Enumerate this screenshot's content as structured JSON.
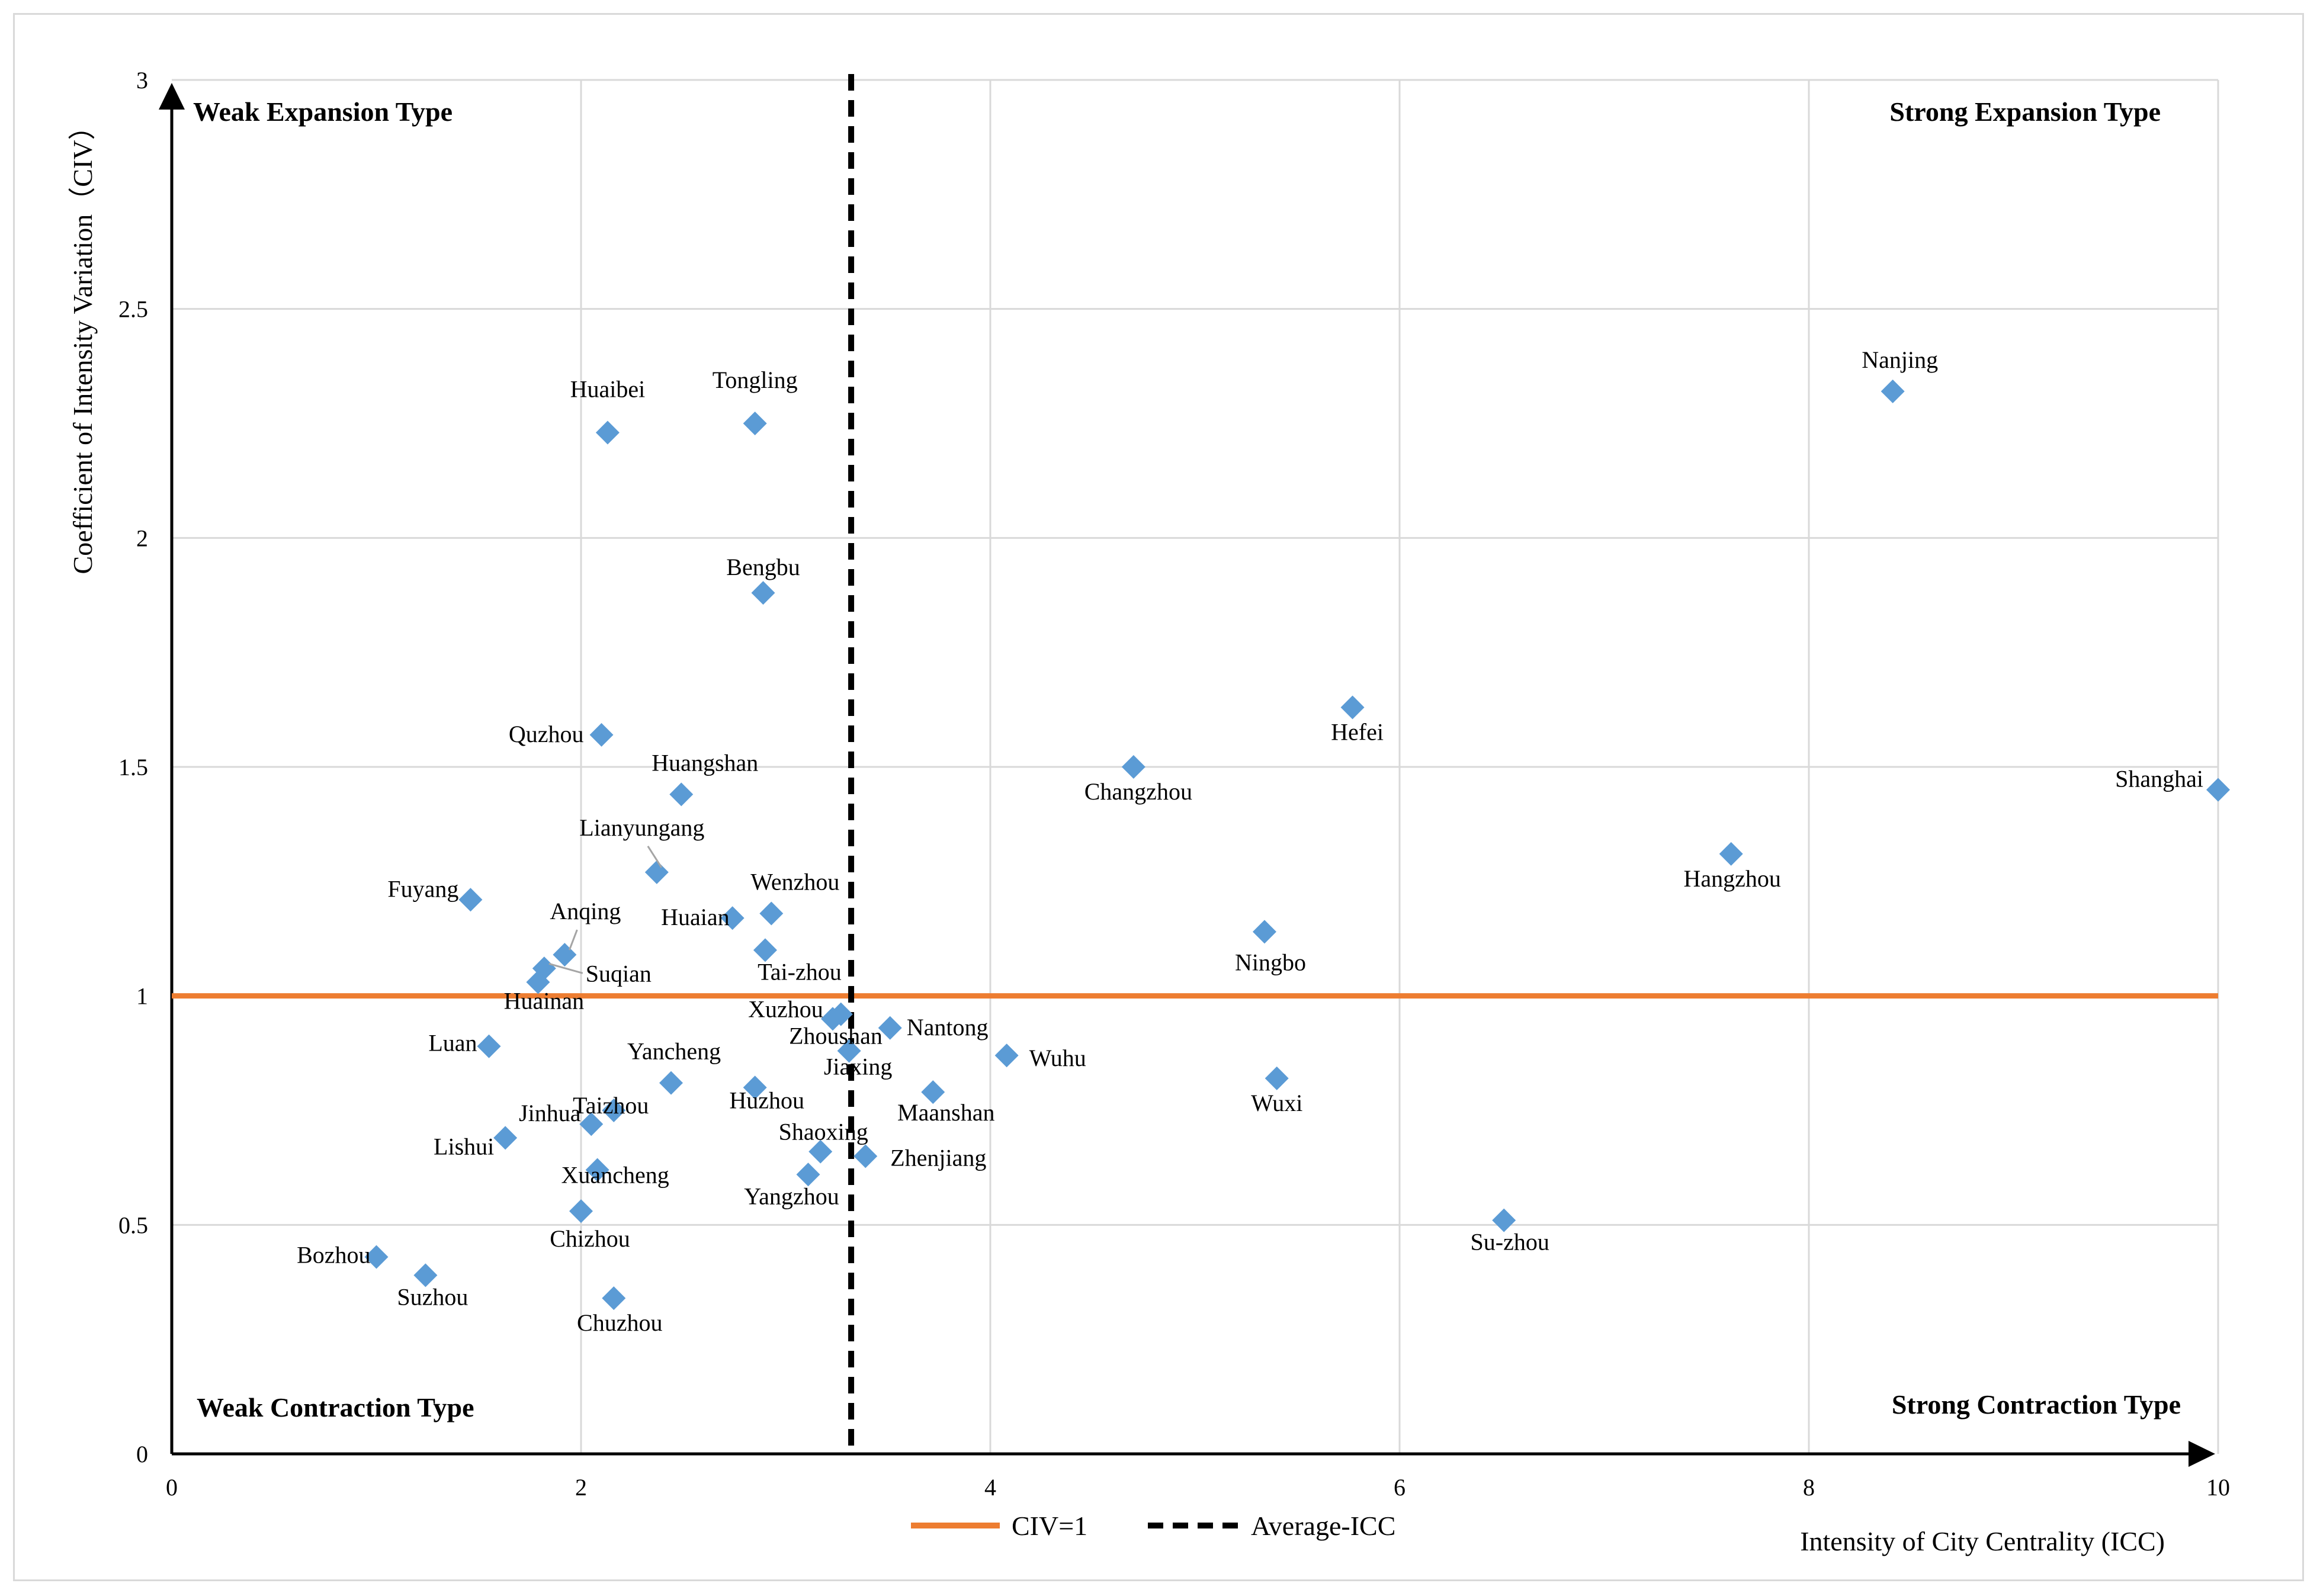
{
  "chart_data": {
    "type": "scatter",
    "xlabel": "Intensity of City Centrality (ICC)",
    "ylabel": "Coefficient of Intensity Variation（CIV）",
    "xlim": [
      0,
      10
    ],
    "ylim": [
      0,
      3
    ],
    "xticks": [
      "0",
      "2",
      "4",
      "6",
      "8",
      "10"
    ],
    "yticks": [
      "0",
      "0.5",
      "1",
      "1.5",
      "2",
      "2.5",
      "3"
    ],
    "grid": true,
    "marker_color": "#5b9bd5",
    "quadrants": {
      "top_left": "Weak Expansion Type",
      "top_right": "Strong Expansion Type",
      "bottom_left": "Weak Contraction Type",
      "bottom_right": "Strong Contraction Type"
    },
    "reference_lines": [
      {
        "name": "CIV=1",
        "orientation": "horizontal",
        "value": 1,
        "color": "#ed7d31",
        "style": "solid"
      },
      {
        "name": "Average-ICC",
        "orientation": "vertical",
        "value": 3.32,
        "color": "#000000",
        "style": "dashed"
      }
    ],
    "legend": [
      "CIV=1",
      "Average-ICC"
    ],
    "points": [
      {
        "label": "Nanjing",
        "x": 8.41,
        "y": 2.32
      },
      {
        "label": "Huaibei",
        "x": 2.13,
        "y": 2.23
      },
      {
        "label": "Tongling",
        "x": 2.85,
        "y": 2.25
      },
      {
        "label": "Bengbu",
        "x": 2.89,
        "y": 1.88
      },
      {
        "label": "Hefei",
        "x": 5.77,
        "y": 1.63
      },
      {
        "label": "Quzhou",
        "x": 2.1,
        "y": 1.57
      },
      {
        "label": "Huangshan",
        "x": 2.49,
        "y": 1.44
      },
      {
        "label": "Changzhou",
        "x": 4.7,
        "y": 1.5
      },
      {
        "label": "Shanghai",
        "x": 10.0,
        "y": 1.45
      },
      {
        "label": "Lianyungang",
        "x": 2.37,
        "y": 1.27
      },
      {
        "label": "Hangzhou",
        "x": 7.62,
        "y": 1.31
      },
      {
        "label": "Fuyang",
        "x": 1.46,
        "y": 1.21
      },
      {
        "label": "Wenzhou",
        "x": 2.93,
        "y": 1.18
      },
      {
        "label": "Huaian",
        "x": 2.74,
        "y": 1.17
      },
      {
        "label": "Anqing",
        "x": 1.92,
        "y": 1.09
      },
      {
        "label": "Ningbo",
        "x": 5.34,
        "y": 1.14
      },
      {
        "label": "Tai-zhou",
        "x": 2.9,
        "y": 1.1
      },
      {
        "label": "Suqian",
        "x": 1.82,
        "y": 1.06
      },
      {
        "label": "Huainan",
        "x": 1.79,
        "y": 1.03
      },
      {
        "label": "Xuzhou",
        "x": 3.27,
        "y": 0.96
      },
      {
        "label": "Zhoushan",
        "x": 3.23,
        "y": 0.95
      },
      {
        "label": "Nantong",
        "x": 3.51,
        "y": 0.93
      },
      {
        "label": "Luan",
        "x": 1.55,
        "y": 0.89
      },
      {
        "label": "Jiaxing",
        "x": 3.31,
        "y": 0.88
      },
      {
        "label": "Wuhu",
        "x": 4.08,
        "y": 0.87
      },
      {
        "label": "Yancheng",
        "x": 2.44,
        "y": 0.81
      },
      {
        "label": "Wuxi",
        "x": 5.4,
        "y": 0.82
      },
      {
        "label": "Huzhou",
        "x": 2.85,
        "y": 0.8
      },
      {
        "label": "Maanshan",
        "x": 3.72,
        "y": 0.79
      },
      {
        "label": "Taizhou",
        "x": 2.16,
        "y": 0.75
      },
      {
        "label": "Jinhua",
        "x": 2.05,
        "y": 0.72
      },
      {
        "label": "Lishui",
        "x": 1.63,
        "y": 0.69
      },
      {
        "label": "Shaoxing",
        "x": 3.17,
        "y": 0.66
      },
      {
        "label": "Zhenjiang",
        "x": 3.39,
        "y": 0.65
      },
      {
        "label": "Xuancheng",
        "x": 2.08,
        "y": 0.62
      },
      {
        "label": "Yangzhou",
        "x": 3.11,
        "y": 0.61
      },
      {
        "label": "Chizhou",
        "x": 2.0,
        "y": 0.53
      },
      {
        "label": "Su-zhou",
        "x": 6.51,
        "y": 0.51
      },
      {
        "label": "Bozhou",
        "x": 1.0,
        "y": 0.43
      },
      {
        "label": "Suzhou",
        "x": 1.24,
        "y": 0.39
      },
      {
        "label": "Chuzhou",
        "x": 2.16,
        "y": 0.34
      }
    ]
  }
}
